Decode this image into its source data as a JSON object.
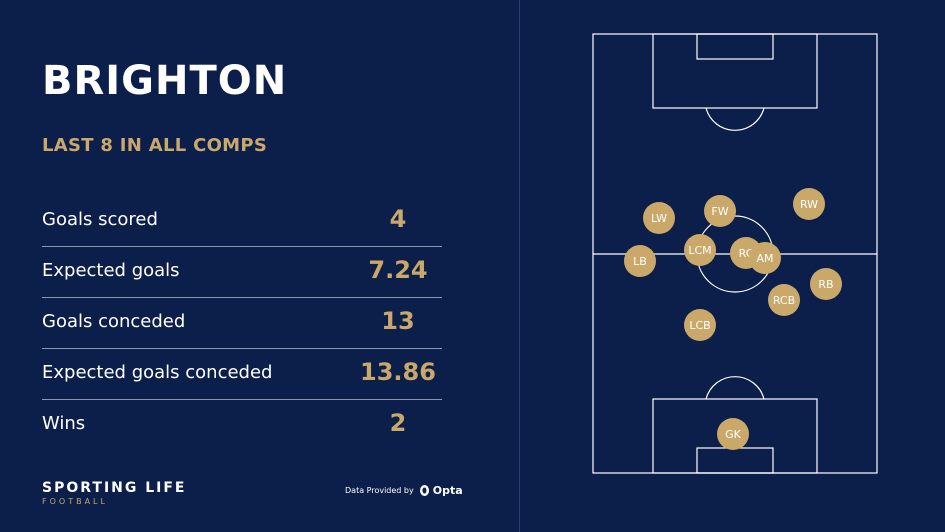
{
  "team": {
    "name": "BRIGHTON"
  },
  "subtitle": "LAST 8 IN ALL COMPS",
  "stats": [
    {
      "label": "Goals scored",
      "value": "4"
    },
    {
      "label": "Expected goals",
      "value": "7.24"
    },
    {
      "label": "Goals conceded",
      "value": "13"
    },
    {
      "label": "Expected goals conceded",
      "value": "13.86"
    },
    {
      "label": "Wins",
      "value": "2"
    }
  ],
  "brand": {
    "name": "SPORTING LIFE",
    "sub": "FOOTBALL"
  },
  "provider": {
    "text": "Data Provided by",
    "logo": "Opta",
    "icon": "opta-logo-icon"
  },
  "players": [
    {
      "pos": "LW"
    },
    {
      "pos": "FW"
    },
    {
      "pos": "RW"
    },
    {
      "pos": "LB"
    },
    {
      "pos": "LCM"
    },
    {
      "pos": "RC"
    },
    {
      "pos": "AM"
    },
    {
      "pos": "RB"
    },
    {
      "pos": "RCB"
    },
    {
      "pos": "LCB"
    },
    {
      "pos": "GK"
    }
  ],
  "colors": {
    "background": "#0b1f4a",
    "accent": "#c9a86a",
    "text": "#ffffff"
  }
}
